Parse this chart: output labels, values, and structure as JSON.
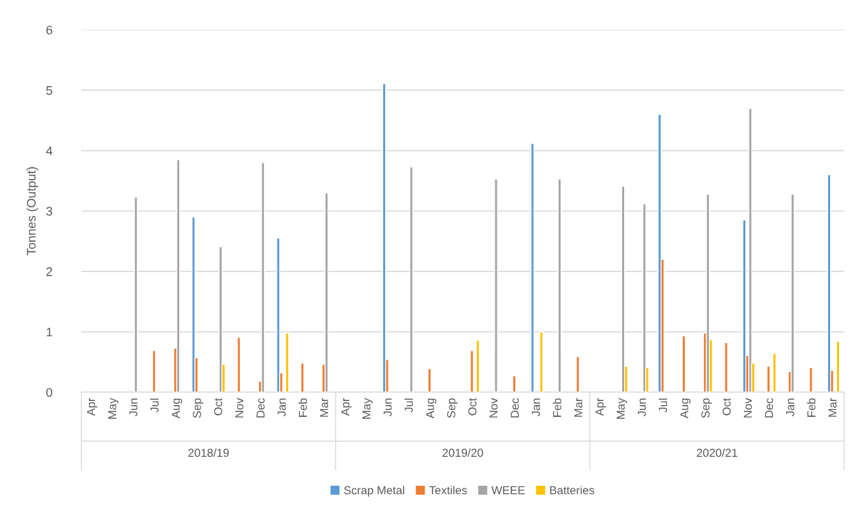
{
  "chart_data": {
    "type": "bar",
    "ylabel": "Tonnes (Output)",
    "categories": [
      "Apr",
      "May",
      "Jun",
      "Jul",
      "Aug",
      "Sep",
      "Oct",
      "Nov",
      "Dec",
      "Jan",
      "Feb",
      "Mar",
      "Apr",
      "May",
      "Jun",
      "Jul",
      "Aug",
      "Sep",
      "Oct",
      "Nov",
      "Dec",
      "Jan",
      "Feb",
      "Mar",
      "Apr",
      "May",
      "Jun",
      "Jul",
      "Aug",
      "Sep",
      "Oct",
      "Nov",
      "Dec",
      "Jan",
      "Feb",
      "Mar"
    ],
    "series": [
      {
        "name": "Scrap Metal",
        "color": "#5b9bd5",
        "values": [
          null,
          null,
          null,
          null,
          null,
          2.9,
          null,
          null,
          null,
          2.55,
          null,
          null,
          null,
          null,
          5.11,
          null,
          null,
          null,
          null,
          null,
          null,
          4.12,
          null,
          null,
          null,
          null,
          null,
          4.6,
          null,
          null,
          null,
          2.85,
          null,
          null,
          null,
          3.6
        ]
      },
      {
        "name": "Textiles",
        "color": "#ed7d31",
        "values": [
          null,
          null,
          null,
          0.69,
          0.73,
          0.57,
          null,
          0.91,
          0.18,
          0.32,
          0.48,
          0.46,
          null,
          null,
          0.54,
          null,
          0.39,
          null,
          0.69,
          null,
          0.27,
          null,
          null,
          0.59,
          null,
          null,
          null,
          2.2,
          0.93,
          0.98,
          0.82,
          0.61,
          0.43,
          0.34,
          0.41,
          0.36
        ]
      },
      {
        "name": "WEEE",
        "color": "#a5a5a5",
        "values": [
          null,
          null,
          3.23,
          null,
          3.85,
          null,
          2.41,
          null,
          3.8,
          null,
          null,
          3.3,
          null,
          null,
          null,
          3.73,
          null,
          null,
          null,
          3.53,
          null,
          null,
          3.53,
          null,
          null,
          3.41,
          3.12,
          null,
          null,
          3.28,
          null,
          4.7,
          null,
          3.28,
          null,
          null
        ]
      },
      {
        "name": "Batteries",
        "color": "#ffc000",
        "values": [
          null,
          null,
          null,
          null,
          null,
          null,
          0.46,
          null,
          null,
          0.98,
          null,
          null,
          null,
          null,
          null,
          null,
          null,
          null,
          0.86,
          null,
          null,
          1.0,
          null,
          null,
          null,
          0.43,
          0.41,
          null,
          null,
          0.87,
          null,
          0.48,
          0.64,
          null,
          null,
          0.84
        ]
      }
    ],
    "ylim": [
      0,
      6
    ],
    "yticks": [
      0,
      1,
      2,
      3,
      4,
      5,
      6
    ],
    "grid": "y",
    "legend": "bottom",
    "annotations": [
      "2018/19",
      "2019/20",
      "2020/21"
    ]
  }
}
